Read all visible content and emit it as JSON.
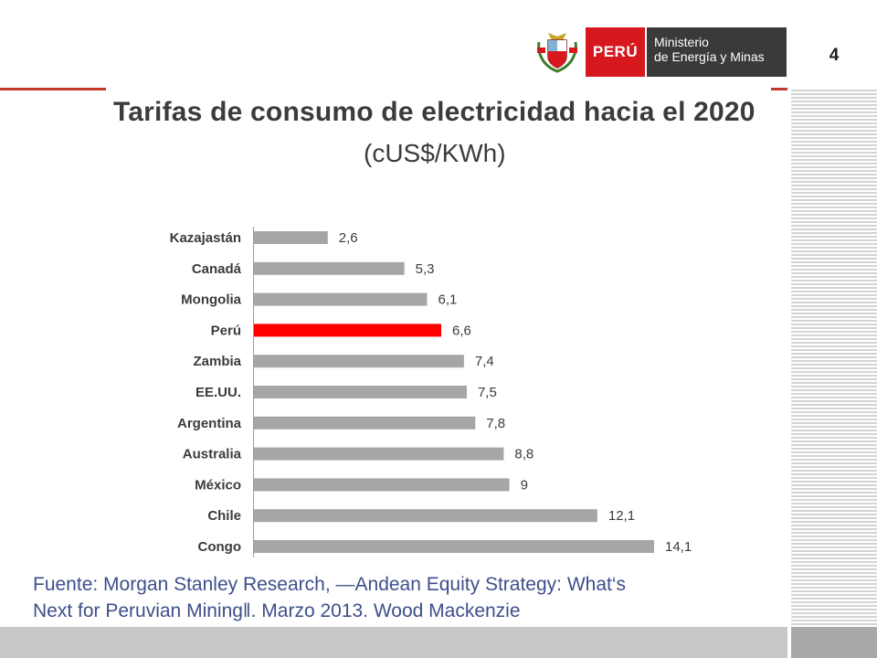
{
  "header": {
    "page_number": "4",
    "brand_label": "PERÚ",
    "ministry_line1": "Ministerio",
    "ministry_line2": "de Energía y Minas",
    "brand_color": "#d7191f",
    "ministry_color": "#3a3a3a",
    "coat_of_arms_icon": "peru-coat-of-arms-icon"
  },
  "chart_data": {
    "type": "bar",
    "orientation": "horizontal",
    "title": "Tarifas de consumo de electricidad hacia el 2020",
    "subtitle": "(cUS$/KWh)",
    "categories": [
      "Kazajastán",
      "Canadá",
      "Mongolia",
      "Perú",
      "Zambia",
      "EE.UU.",
      "Argentina",
      "Australia",
      "México",
      "Chile",
      "Congo"
    ],
    "values": [
      2.6,
      5.3,
      6.1,
      6.6,
      7.4,
      7.5,
      7.8,
      8.8,
      9,
      12.1,
      14.1
    ],
    "value_labels": [
      "2,6",
      "5,3",
      "6,1",
      "6,6",
      "7,4",
      "7,5",
      "7,8",
      "8,8",
      "9",
      "12,1",
      "14,1"
    ],
    "highlight": "Perú",
    "bar_color": "#a6a6a6",
    "highlight_color": "#ff0000",
    "xlim": [
      0,
      14.1
    ],
    "grid": false,
    "legend": "none"
  },
  "source": {
    "line1": "Fuente: Morgan Stanley Research, ―Andean Equity Strategy: What‘s",
    "line2": "Next for Peruvian Mining‖. Marzo 2013. Wood Mackenzie"
  }
}
